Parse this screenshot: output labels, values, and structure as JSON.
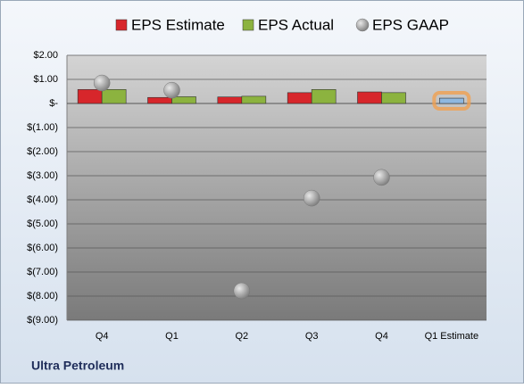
{
  "chart_data": {
    "type": "bar",
    "categories": [
      "Q4",
      "Q1",
      "Q2",
      "Q3",
      "Q4",
      "Q1 Estimate"
    ],
    "series": [
      {
        "name": "EPS Estimate",
        "color": "#d7262b",
        "values": [
          0.58,
          0.25,
          0.27,
          0.45,
          0.48,
          0.22
        ],
        "colors": [
          "#d7262b",
          "#d7262b",
          "#d7262b",
          "#d7262b",
          "#d7262b",
          "#8fb8e0"
        ]
      },
      {
        "name": "EPS Actual",
        "color": "#8cb33f",
        "values": [
          0.58,
          0.28,
          0.3,
          0.58,
          0.45,
          null
        ]
      },
      {
        "name": "EPS GAAP",
        "color": "#a6a6a6",
        "type": "scatter",
        "values": [
          0.85,
          0.55,
          -7.78,
          -3.93,
          -3.07,
          null
        ]
      }
    ],
    "ylim": [
      -9,
      2
    ],
    "yticks": [
      {
        "value": 2,
        "label": "$2.00"
      },
      {
        "value": 1,
        "label": "$1.00"
      },
      {
        "value": 0,
        "label": "$-"
      },
      {
        "value": -1,
        "label": "$(1.00)"
      },
      {
        "value": -2,
        "label": "$(2.00)"
      },
      {
        "value": -3,
        "label": "$(3.00)"
      },
      {
        "value": -4,
        "label": "$(4.00)"
      },
      {
        "value": -5,
        "label": "$(5.00)"
      },
      {
        "value": -6,
        "label": "$(6.00)"
      },
      {
        "value": -7,
        "label": "$(7.00)"
      },
      {
        "value": -8,
        "label": "$(8.00)"
      },
      {
        "value": -9,
        "label": "$(9.00)"
      }
    ],
    "grid": true,
    "footer": "Ultra Petroleum"
  }
}
